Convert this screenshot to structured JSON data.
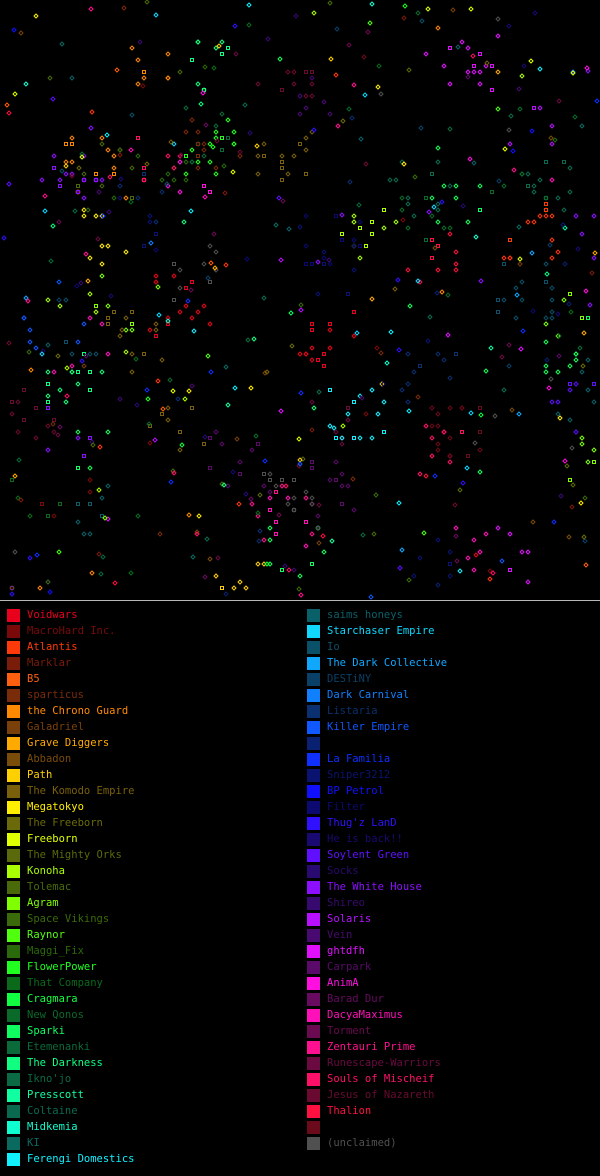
{
  "map": {
    "dot_colors": [
      "#ff0000",
      "#0000ff",
      "#00ff00",
      "#ffff00",
      "#00ffff",
      "#ff8000",
      "#8000ff",
      "#ff00ff"
    ]
  },
  "legend": {
    "left": [
      {
        "name": "Voidwars",
        "color": "#e8001c",
        "bright": true
      },
      {
        "name": "MacroHard Inc.",
        "color": "#7a0a0a",
        "bright": false
      },
      {
        "name": "Atlantis",
        "color": "#ff3a0a",
        "bright": true
      },
      {
        "name": "Marklar",
        "color": "#7a1c0a",
        "bright": false
      },
      {
        "name": "B5",
        "color": "#ff6010",
        "bright": true
      },
      {
        "name": "sparticus",
        "color": "#7a2c0a",
        "bright": false
      },
      {
        "name": "the Chrono Guard",
        "color": "#ff8a00",
        "bright": true
      },
      {
        "name": "Galadriel",
        "color": "#7a400a",
        "bright": false
      },
      {
        "name": "Grave Diggers",
        "color": "#ffaa00",
        "bright": true
      },
      {
        "name": "Abbadon",
        "color": "#7a4c0a",
        "bright": false
      },
      {
        "name": "Path",
        "color": "#ffd000",
        "bright": true
      },
      {
        "name": "The Komodo Empire",
        "color": "#7a600a",
        "bright": false
      },
      {
        "name": "Megatokyo",
        "color": "#ffee00",
        "bright": true
      },
      {
        "name": "The Freeborn",
        "color": "#6a6a0a",
        "bright": false
      },
      {
        "name": "Freeborn",
        "color": "#e0ff00",
        "bright": true
      },
      {
        "name": "The Mighty Orks",
        "color": "#5a6a0a",
        "bright": false
      },
      {
        "name": "Konoha",
        "color": "#aaff00",
        "bright": true
      },
      {
        "name": "Tolemac",
        "color": "#4a6a0a",
        "bright": false
      },
      {
        "name": "Agram",
        "color": "#80ff00",
        "bright": true
      },
      {
        "name": "Space Vikings",
        "color": "#3a6a0a",
        "bright": false
      },
      {
        "name": "Raynor",
        "color": "#50ff10",
        "bright": true
      },
      {
        "name": "Maggi_Fix",
        "color": "#2a6a0a",
        "bright": false
      },
      {
        "name": "FlowerPower",
        "color": "#20ff20",
        "bright": true
      },
      {
        "name": "That Company",
        "color": "#0a6a1a",
        "bright": false
      },
      {
        "name": "Cragmara",
        "color": "#10ff40",
        "bright": true
      },
      {
        "name": "New Qonos",
        "color": "#0a6a2a",
        "bright": false
      },
      {
        "name": "Sparki",
        "color": "#10ff60",
        "bright": true
      },
      {
        "name": "Etemenanki",
        "color": "#0a6a3a",
        "bright": false
      },
      {
        "name": "The Darkness",
        "color": "#10ff80",
        "bright": true
      },
      {
        "name": "Ikno'jo",
        "color": "#0a6a44",
        "bright": false
      },
      {
        "name": "Presscott",
        "color": "#10ffa0",
        "bright": true
      },
      {
        "name": "Coltaine",
        "color": "#0a6a50",
        "bright": false
      },
      {
        "name": "Midkemia",
        "color": "#10ffd0",
        "bright": true
      },
      {
        "name": "KI",
        "color": "#0a6a60",
        "bright": false
      },
      {
        "name": "Ferengi Domestics",
        "color": "#10f0ff",
        "bright": true
      }
    ],
    "right": [
      {
        "name": "saims honeys",
        "color": "#0a6068",
        "bright": false
      },
      {
        "name": "Starchaser Empire",
        "color": "#10d8ff",
        "bright": true
      },
      {
        "name": "Io",
        "color": "#0a5068",
        "bright": false
      },
      {
        "name": "The Dark Collective",
        "color": "#10a8ff",
        "bright": true
      },
      {
        "name": "DESTiNY",
        "color": "#0a4068",
        "bright": false
      },
      {
        "name": "Dark Carnival",
        "color": "#1080ff",
        "bright": true
      },
      {
        "name": "Listaria",
        "color": "#0a3070",
        "bright": false
      },
      {
        "name": "Killer Empire",
        "color": "#1058ff",
        "bright": true
      },
      {
        "name": "",
        "color": "#0a2070",
        "bright": false
      },
      {
        "name": "La Familia",
        "color": "#1030ff",
        "bright": true
      },
      {
        "name": "Sniper3212",
        "color": "#0a1470",
        "bright": false
      },
      {
        "name": "BP Petrol",
        "color": "#1010ff",
        "bright": true
      },
      {
        "name": "Filter",
        "color": "#0c0a70",
        "bright": false
      },
      {
        "name": "Thug'z LanD",
        "color": "#3010ff",
        "bright": true
      },
      {
        "name": "He is back!!",
        "color": "#180a70",
        "bright": false
      },
      {
        "name": "Soylent Green",
        "color": "#6010ff",
        "bright": true
      },
      {
        "name": "Socks",
        "color": "#280a70",
        "bright": false
      },
      {
        "name": "The White House",
        "color": "#8c10ff",
        "bright": true
      },
      {
        "name": "Shireo",
        "color": "#380a70",
        "bright": false
      },
      {
        "name": "Solaris",
        "color": "#b810ff",
        "bright": true
      },
      {
        "name": "Vein",
        "color": "#480a70",
        "bright": false
      },
      {
        "name": "ghtdfh",
        "color": "#e010ff",
        "bright": true
      },
      {
        "name": "Carpark",
        "color": "#5a0a68",
        "bright": false
      },
      {
        "name": "AnimA",
        "color": "#ff10e0",
        "bright": true
      },
      {
        "name": "Barad Dur",
        "color": "#680a60",
        "bright": false
      },
      {
        "name": "DacyaMaximus",
        "color": "#ff10b8",
        "bright": true
      },
      {
        "name": "Torment",
        "color": "#6a0a50",
        "bright": false
      },
      {
        "name": "Zentauri Prime",
        "color": "#ff1090",
        "bright": true
      },
      {
        "name": "Runescape-Warriors",
        "color": "#6a0a40",
        "bright": false
      },
      {
        "name": "Souls of Mischeif",
        "color": "#ff1068",
        "bright": true
      },
      {
        "name": "Jesus of Nazareth",
        "color": "#6a0a30",
        "bright": false
      },
      {
        "name": "Thalion",
        "color": "#ff1040",
        "bright": true
      },
      {
        "name": "",
        "color": "#6a0a1a",
        "bright": false
      },
      {
        "name": "(unclaimed)",
        "color": "#505050",
        "bright": false
      }
    ]
  }
}
